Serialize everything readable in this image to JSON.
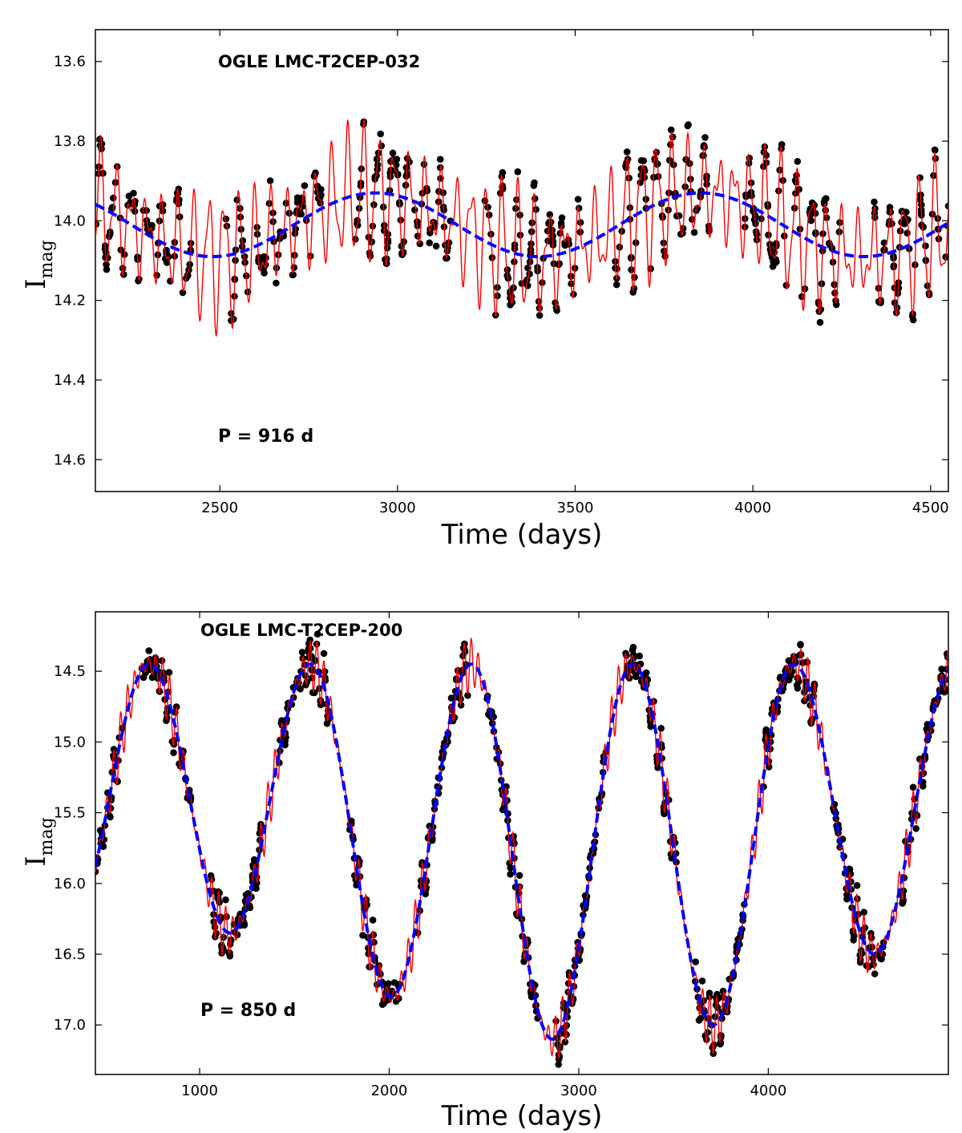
{
  "chart_data": [
    {
      "type": "scatter",
      "title": "OGLE LMC-T2CEP-032",
      "period_label": "P = 916 d",
      "xlabel": "Time (days)",
      "ylabel_main": "I",
      "ylabel_sub": "mag",
      "xlim": [
        2150,
        4550
      ],
      "ylim": [
        14.68,
        13.52
      ],
      "y_inverted": true,
      "xticks": [
        2500,
        3000,
        3500,
        4000,
        4500
      ],
      "yticks": [
        13.6,
        13.8,
        14.0,
        14.2,
        14.4,
        14.6
      ],
      "ytick_labels": [
        "13.6",
        "13.8",
        "14.0",
        "14.2",
        "14.4",
        "14.6"
      ],
      "series": [
        {
          "name": "observations",
          "kind": "points",
          "color": "#000000",
          "count": 620
        },
        {
          "name": "model fit",
          "kind": "line",
          "color": "#ff0000"
        },
        {
          "name": "long-period component",
          "kind": "dashed line",
          "color": "#0000ff"
        }
      ],
      "model": {
        "mean": 14.01,
        "long_amp": 0.08,
        "long_period": 916,
        "long_phase": 2480,
        "short_amp": 0.15,
        "short_period": 43.5,
        "beat_amp": 0.5,
        "beat_period": 400
      }
    },
    {
      "type": "scatter",
      "title": "OGLE LMC-T2CEP-200",
      "period_label": "P = 850 d",
      "xlabel": "Time (days)",
      "ylabel_main": "I",
      "ylabel_sub": "mag",
      "xlim": [
        450,
        4950
      ],
      "ylim": [
        17.35,
        14.08
      ],
      "y_inverted": true,
      "xticks": [
        1000,
        2000,
        3000,
        4000
      ],
      "yticks": [
        14.5,
        15.0,
        15.5,
        16.0,
        16.5,
        17.0
      ],
      "ytick_labels": [
        "14.5",
        "15.0",
        "15.5",
        "16.0",
        "16.5",
        "17.0"
      ],
      "series": [
        {
          "name": "observations",
          "kind": "points",
          "color": "#000000",
          "count": 900
        },
        {
          "name": "model fit",
          "kind": "line",
          "color": "#ff0000"
        },
        {
          "name": "long-period component",
          "kind": "dashed line",
          "color": "#0000ff"
        }
      ],
      "model": {
        "long_period": 850,
        "min_times": [
          1160,
          2010,
          2860,
          3710,
          4560
        ],
        "min_mags": [
          16.35,
          16.8,
          17.1,
          17.0,
          16.5
        ],
        "max_mag": 14.45,
        "short_amp": 0.2,
        "short_period": 37
      }
    }
  ]
}
